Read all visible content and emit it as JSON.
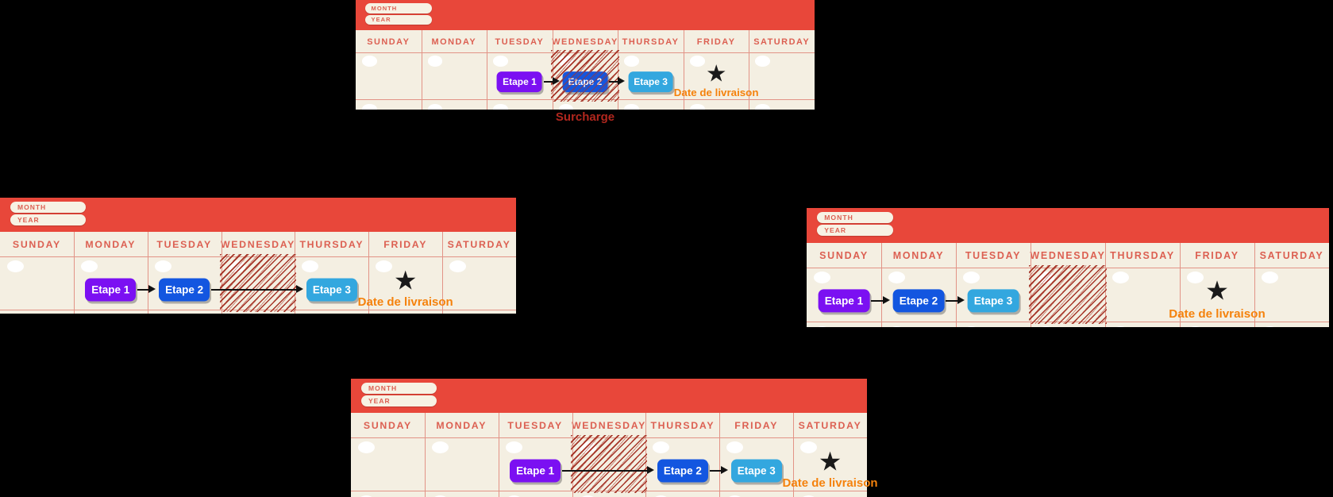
{
  "colors": {
    "background": "#000000",
    "header_red": "#E8473A",
    "calendar_cream": "#F4EFE2",
    "day_label": "#DC6052",
    "grid_line": "#E29386",
    "hatch_red": "#A63528",
    "etape1": "#7B10F2",
    "etape2": "#1356E0",
    "etape3": "#33A7DF",
    "button_text": "#FFFFFF",
    "arrow_black": "#111111",
    "star_black": "#1A1A1A",
    "date_orange": "#F5820C",
    "surcharge_red": "#B2271E",
    "pill_cream": "#F7F2E4",
    "pill_text": "#DC6052",
    "circle_white": "#FFFFFF"
  },
  "icons": {
    "star": "★"
  },
  "labels": {
    "month": "MONTH",
    "year": "YEAR",
    "days": [
      "SUNDAY",
      "MONDAY",
      "TUESDAY",
      "WEDNESDAY",
      "THURSDAY",
      "FRIDAY",
      "SATURDAY"
    ],
    "etape1": "Etape 1",
    "etape2": "Etape 2",
    "etape3": "Etape 3",
    "delivery": "Date de livraison",
    "surcharge": "Surcharge"
  },
  "calendars": [
    {
      "id": "top",
      "steps": [
        {
          "label_key": "etape1",
          "day": "TUESDAY",
          "color_key": "etape1"
        },
        {
          "label_key": "etape2",
          "day": "WEDNESDAY",
          "color_key": "etape2"
        },
        {
          "label_key": "etape3",
          "day": "THURSDAY",
          "color_key": "etape3"
        }
      ],
      "arrows": [
        [
          0,
          1
        ],
        [
          1,
          2
        ]
      ],
      "hatched_day": "WEDNESDAY",
      "hatch_over_step": true,
      "star_day": "FRIDAY",
      "delivery_day": "FRIDAY",
      "caption_key": "surcharge"
    },
    {
      "id": "left",
      "steps": [
        {
          "label_key": "etape1",
          "day": "MONDAY",
          "color_key": "etape1"
        },
        {
          "label_key": "etape2",
          "day": "TUESDAY",
          "color_key": "etape2"
        },
        {
          "label_key": "etape3",
          "day": "THURSDAY",
          "color_key": "etape3"
        }
      ],
      "arrows": [
        [
          0,
          1
        ],
        [
          1,
          2
        ]
      ],
      "hatched_day": "WEDNESDAY",
      "hatch_over_step": false,
      "star_day": "FRIDAY",
      "delivery_day": "FRIDAY",
      "caption_key": null
    },
    {
      "id": "right",
      "steps": [
        {
          "label_key": "etape1",
          "day": "SUNDAY",
          "color_key": "etape1"
        },
        {
          "label_key": "etape2",
          "day": "MONDAY",
          "color_key": "etape2"
        },
        {
          "label_key": "etape3",
          "day": "TUESDAY",
          "color_key": "etape3"
        }
      ],
      "arrows": [
        [
          0,
          1
        ],
        [
          1,
          2
        ]
      ],
      "hatched_day": "WEDNESDAY",
      "hatch_over_step": false,
      "star_day": "FRIDAY",
      "delivery_day": "FRIDAY",
      "caption_key": null
    },
    {
      "id": "bottom",
      "steps": [
        {
          "label_key": "etape1",
          "day": "TUESDAY",
          "color_key": "etape1"
        },
        {
          "label_key": "etape2",
          "day": "THURSDAY",
          "color_key": "etape2"
        },
        {
          "label_key": "etape3",
          "day": "FRIDAY",
          "color_key": "etape3"
        }
      ],
      "arrows": [
        [
          0,
          1
        ],
        [
          1,
          2
        ]
      ],
      "hatched_day": "WEDNESDAY",
      "hatch_over_step": false,
      "star_day": "SATURDAY",
      "delivery_day": "SATURDAY",
      "caption_key": null
    }
  ]
}
